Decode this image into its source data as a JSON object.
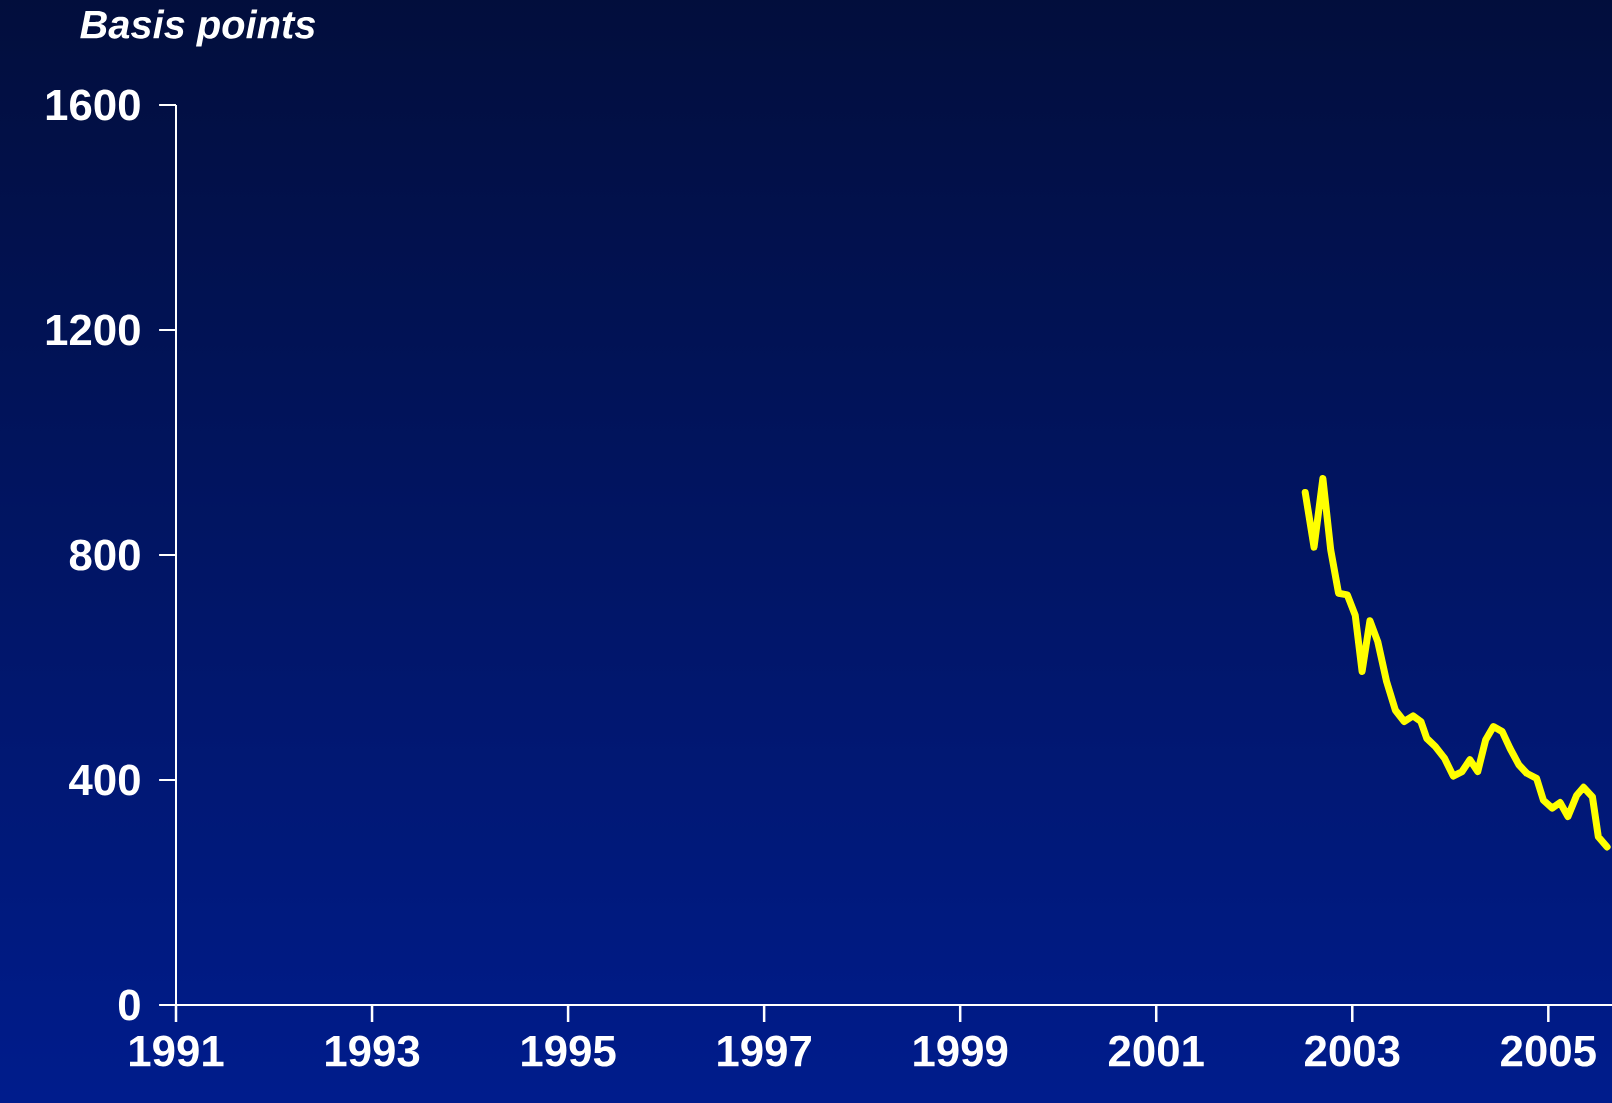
{
  "chart_data": {
    "type": "line",
    "ylabel": "Basis points",
    "x": [
      2002.52,
      2002.61,
      2002.7,
      2002.78,
      2002.86,
      2002.95,
      2003.03,
      2003.1,
      2003.18,
      2003.26,
      2003.35,
      2003.44,
      2003.53,
      2003.62,
      2003.7,
      2003.76,
      2003.85,
      2003.94,
      2004.03,
      2004.12,
      2004.2,
      2004.28,
      2004.36,
      2004.44,
      2004.53,
      2004.61,
      2004.7,
      2004.78,
      2004.88,
      2004.95,
      2005.04,
      2005.12,
      2005.2,
      2005.29,
      2005.36,
      2005.45,
      2005.51,
      2005.6
    ],
    "series": [
      {
        "color": "#ffff00",
        "values": [
          911,
          814,
          936,
          809,
          732,
          729,
          693,
          593,
          683,
          646,
          575,
          524,
          504,
          514,
          504,
          474,
          459,
          439,
          407,
          415,
          436,
          415,
          471,
          495,
          486,
          456,
          427,
          412,
          403,
          364,
          350,
          360,
          335,
          373,
          387,
          370,
          299,
          281
        ]
      }
    ],
    "xlim": [
      1991,
      2005.65
    ],
    "ylim": [
      0,
      1600
    ],
    "xticks": [
      1991,
      1993,
      1995,
      1997,
      1999,
      2001,
      2003,
      2005
    ],
    "yticks": [
      0,
      400,
      800,
      1200,
      1600
    ]
  }
}
